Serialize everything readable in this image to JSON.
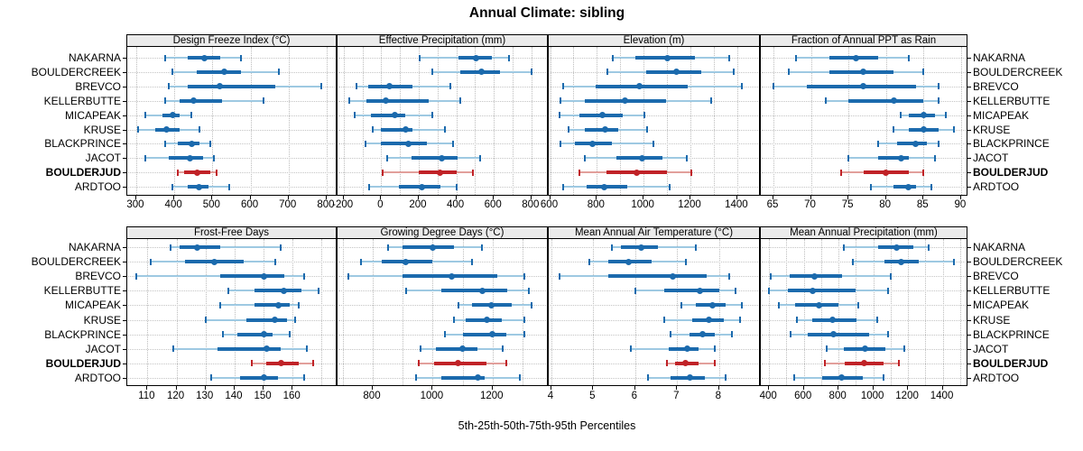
{
  "title": "Annual Climate: sibling",
  "caption": "5th-25th-50th-75th-95th Percentiles",
  "colors": {
    "blue": "#1b6aad",
    "light_blue": "#9ec9e2",
    "red": "#c02227",
    "light_red": "#e29f9b",
    "strip_bg": "#ebebeb",
    "grid": "#bdbdbd",
    "border": "#000000"
  },
  "chart_data": {
    "type": "dotplot",
    "title": "Annual Climate: sibling",
    "caption": "5th-25th-50th-75th-95th Percentiles",
    "percentile_labels": [
      "5th",
      "25th",
      "50th",
      "75th",
      "95th"
    ],
    "stations": [
      "NAKARNA",
      "BOULDERCREEK",
      "BREVCO",
      "KELLERBUTTE",
      "MICAPEAK",
      "KRUSE",
      "BLACKPRINCE",
      "JACOT",
      "BOULDERJUD",
      "ARDTOO"
    ],
    "highlighted_station": "BOULDERJUD",
    "legend_position": "none",
    "grid": true,
    "panels": [
      {
        "title": "Design Freeze Index (°C)",
        "row": "top",
        "xlim": [
          280,
          825
        ],
        "tick_values": [
          300,
          400,
          500,
          600,
          700,
          800
        ],
        "tick_labels": [
          "300",
          "400",
          "500",
          "600",
          "700",
          "800"
        ],
        "grid_values": [
          300,
          400,
          500,
          600,
          700,
          800
        ],
        "values": [
          [
            375,
            435,
            480,
            520,
            575
          ],
          [
            395,
            460,
            530,
            575,
            675
          ],
          [
            385,
            435,
            520,
            665,
            785
          ],
          [
            375,
            415,
            450,
            525,
            635
          ],
          [
            325,
            370,
            395,
            415,
            445
          ],
          [
            305,
            350,
            380,
            415,
            465
          ],
          [
            375,
            410,
            445,
            465,
            495
          ],
          [
            325,
            385,
            440,
            475,
            505
          ],
          [
            410,
            425,
            460,
            495,
            510
          ],
          [
            395,
            435,
            465,
            490,
            545
          ]
        ]
      },
      {
        "title": "Effective Precipitation (mm)",
        "row": "top",
        "xlim": [
          -225,
          885
        ],
        "tick_values": [
          -200,
          0,
          200,
          400,
          600,
          800
        ],
        "tick_labels": [
          "-200",
          "0",
          "200",
          "400",
          "600",
          "800"
        ],
        "grid_values": [
          -200,
          -100,
          0,
          100,
          200,
          300,
          400,
          500,
          600,
          700,
          800
        ],
        "values": [
          [
            205,
            410,
            505,
            590,
            680
          ],
          [
            270,
            420,
            535,
            635,
            800
          ],
          [
            -130,
            -70,
            45,
            165,
            370
          ],
          [
            -170,
            -80,
            25,
            255,
            420
          ],
          [
            -140,
            -55,
            75,
            130,
            270
          ],
          [
            -45,
            0,
            130,
            165,
            340
          ],
          [
            -85,
            0,
            145,
            245,
            385
          ],
          [
            30,
            160,
            325,
            405,
            525
          ],
          [
            10,
            200,
            315,
            400,
            490
          ],
          [
            -65,
            95,
            215,
            315,
            400
          ]
        ]
      },
      {
        "title": "Elevation (m)",
        "row": "top",
        "xlim": [
          600,
          1495
        ],
        "tick_values": [
          600,
          800,
          1000,
          1200,
          1400
        ],
        "tick_labels": [
          "600",
          "800",
          "1000",
          "1200",
          "1400"
        ],
        "grid_values": [
          600,
          700,
          800,
          900,
          1000,
          1100,
          1200,
          1300,
          1400
        ],
        "values": [
          [
            870,
            965,
            1100,
            1220,
            1365
          ],
          [
            845,
            1010,
            1140,
            1245,
            1385
          ],
          [
            655,
            795,
            980,
            1190,
            1420
          ],
          [
            645,
            750,
            920,
            1095,
            1290
          ],
          [
            640,
            725,
            825,
            910,
            1005
          ],
          [
            680,
            750,
            835,
            890,
            1015
          ],
          [
            645,
            705,
            780,
            865,
            1040
          ],
          [
            750,
            885,
            995,
            1080,
            1185
          ],
          [
            725,
            840,
            970,
            1100,
            1205
          ],
          [
            655,
            755,
            830,
            930,
            1110
          ]
        ]
      },
      {
        "title": "Fraction of Annual PPT as Rain",
        "row": "top",
        "xlim": [
          63.5,
          90.8
        ],
        "tick_values": [
          65,
          70,
          75,
          80,
          85,
          90
        ],
        "tick_labels": [
          "65",
          "70",
          "75",
          "80",
          "85",
          "90"
        ],
        "grid_values": [
          65,
          70,
          75,
          80,
          85,
          90
        ],
        "values": [
          [
            68,
            72.5,
            76,
            79,
            83
          ],
          [
            67,
            72.5,
            77,
            81,
            85
          ],
          [
            65,
            69.5,
            77,
            84,
            87
          ],
          [
            72,
            75,
            81,
            85,
            87
          ],
          [
            82,
            83,
            85,
            86.5,
            88
          ],
          [
            81,
            83,
            85,
            87,
            89
          ],
          [
            79,
            81.5,
            84,
            85.5,
            87
          ],
          [
            75,
            79,
            82,
            83,
            86.5
          ],
          [
            74,
            77,
            80,
            83,
            85
          ],
          [
            78,
            81,
            83,
            84,
            86
          ]
        ]
      },
      {
        "title": "Frost-Free Days",
        "row": "bottom",
        "xlim": [
          103.5,
          175
        ],
        "tick_values": [
          110,
          120,
          130,
          140,
          150,
          160
        ],
        "tick_labels": [
          "110",
          "120",
          "130",
          "140",
          "150",
          "160"
        ],
        "grid_values": [
          110,
          120,
          130,
          140,
          150,
          160,
          170
        ],
        "values": [
          [
            118,
            121,
            127,
            135,
            156
          ],
          [
            111,
            123,
            133,
            143,
            154
          ],
          [
            106,
            135,
            150,
            157,
            164
          ],
          [
            138,
            147,
            157,
            163,
            169
          ],
          [
            135,
            147,
            155,
            159,
            162
          ],
          [
            130,
            144,
            154,
            158,
            161
          ],
          [
            136,
            141,
            150,
            153,
            159
          ],
          [
            119,
            134,
            151,
            156,
            165
          ],
          [
            146,
            151,
            156,
            162,
            167
          ],
          [
            132,
            142,
            150,
            155,
            164
          ]
        ]
      },
      {
        "title": "Growing Degree Days (°C)",
        "row": "bottom",
        "xlim": [
          687,
          1383
        ],
        "tick_values": [
          800,
          1000,
          1200
        ],
        "tick_labels": [
          "800",
          "1000",
          "1200"
        ],
        "grid_values": [
          700,
          800,
          900,
          1000,
          1100,
          1200,
          1300
        ],
        "values": [
          [
            850,
            900,
            1000,
            1070,
            1165
          ],
          [
            760,
            830,
            910,
            1000,
            1130
          ],
          [
            720,
            900,
            1065,
            1215,
            1305
          ],
          [
            910,
            1030,
            1165,
            1250,
            1320
          ],
          [
            1085,
            1130,
            1195,
            1265,
            1330
          ],
          [
            1070,
            1110,
            1180,
            1230,
            1305
          ],
          [
            1040,
            1100,
            1200,
            1245,
            1305
          ],
          [
            960,
            1010,
            1100,
            1150,
            1235
          ],
          [
            955,
            1005,
            1085,
            1180,
            1245
          ],
          [
            945,
            1030,
            1150,
            1175,
            1290
          ]
        ]
      },
      {
        "title": "Mean Annual Air Temperature (°C)",
        "row": "bottom",
        "xlim": [
          3.97,
          8.96
        ],
        "tick_values": [
          4,
          5,
          6,
          7,
          8
        ],
        "tick_labels": [
          "4",
          "5",
          "6",
          "7",
          "8"
        ],
        "grid_values": [
          4,
          5,
          6,
          7,
          8
        ],
        "values": [
          [
            5.45,
            5.65,
            6.15,
            6.55,
            7.45
          ],
          [
            4.9,
            5.35,
            5.85,
            6.4,
            7.2
          ],
          [
            4.2,
            5.35,
            6.9,
            7.7,
            8.25
          ],
          [
            6.0,
            6.7,
            7.55,
            8.0,
            8.4
          ],
          [
            7.1,
            7.45,
            7.85,
            8.15,
            8.55
          ],
          [
            6.7,
            7.35,
            7.75,
            8.1,
            8.5
          ],
          [
            6.85,
            7.3,
            7.6,
            7.9,
            8.3
          ],
          [
            5.9,
            6.8,
            7.25,
            7.5,
            7.9
          ],
          [
            6.75,
            6.95,
            7.2,
            7.5,
            7.9
          ],
          [
            6.3,
            6.85,
            7.3,
            7.65,
            8.15
          ]
        ]
      },
      {
        "title": "Mean Annual Precipitation (mm)",
        "row": "bottom",
        "xlim": [
          360,
          1540
        ],
        "tick_values": [
          400,
          600,
          800,
          1000,
          1200,
          1400
        ],
        "tick_labels": [
          "400",
          "600",
          "800",
          "1000",
          "1200",
          "1400"
        ],
        "grid_values": [
          400,
          500,
          600,
          700,
          800,
          900,
          1000,
          1100,
          1200,
          1300,
          1400,
          1500
        ],
        "values": [
          [
            830,
            1030,
            1135,
            1230,
            1320
          ],
          [
            880,
            1065,
            1160,
            1260,
            1465
          ],
          [
            410,
            520,
            660,
            820,
            1100
          ],
          [
            400,
            510,
            650,
            900,
            1085
          ],
          [
            455,
            550,
            685,
            800,
            915
          ],
          [
            560,
            650,
            765,
            905,
            1025
          ],
          [
            525,
            620,
            770,
            975,
            1085
          ],
          [
            730,
            830,
            950,
            1070,
            1180
          ],
          [
            720,
            835,
            945,
            1060,
            1150
          ],
          [
            545,
            705,
            820,
            940,
            1060
          ]
        ]
      }
    ]
  }
}
